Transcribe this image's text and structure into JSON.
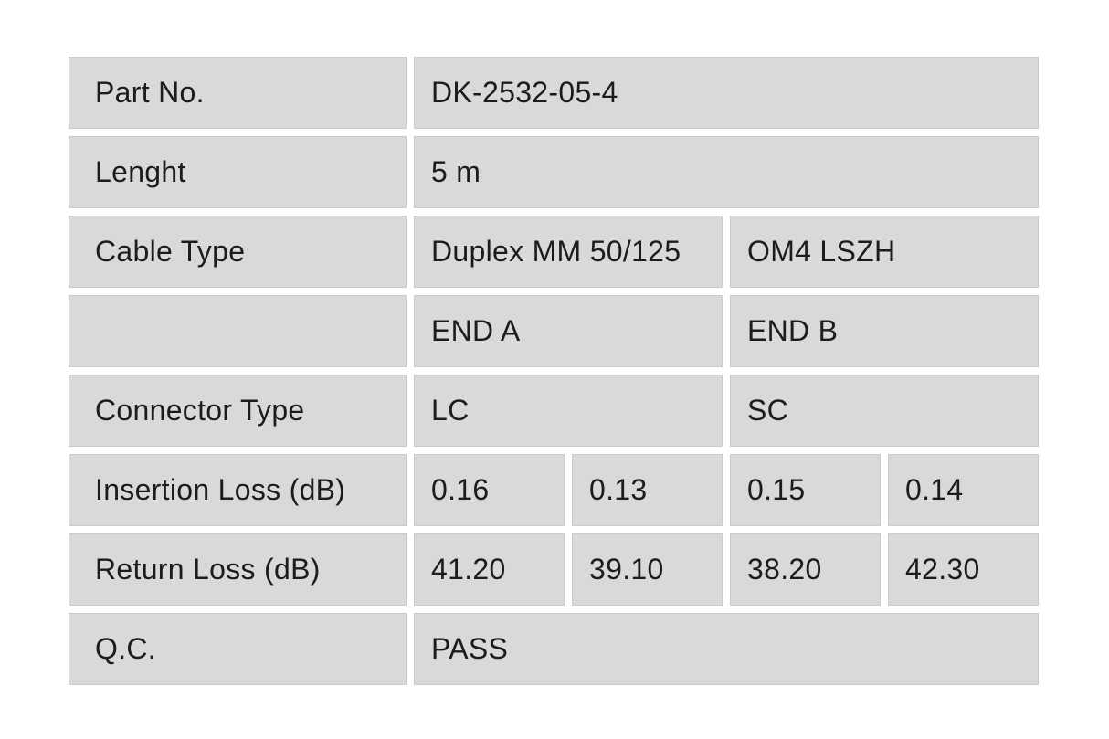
{
  "table": {
    "name": "fiber-patch-cable-qc-spec",
    "rows": [
      {
        "label": "Part No.",
        "values": [
          {
            "text": "DK-2532-05-4",
            "span": 4
          }
        ]
      },
      {
        "label": "Lenght",
        "values": [
          {
            "text": "5 m",
            "span": 4
          }
        ]
      },
      {
        "label": "Cable Type",
        "values": [
          {
            "text": "Duplex MM 50/125",
            "span": 2
          },
          {
            "text": "OM4 LSZH",
            "span": 2
          }
        ]
      },
      {
        "label": "",
        "values": [
          {
            "text": "END A",
            "span": 2
          },
          {
            "text": "END B",
            "span": 2
          }
        ]
      },
      {
        "label": "Connector Type",
        "values": [
          {
            "text": "LC",
            "span": 2
          },
          {
            "text": "SC",
            "span": 2
          }
        ]
      },
      {
        "label": "Insertion Loss (dB)",
        "values": [
          {
            "text": "0.16",
            "span": 1
          },
          {
            "text": "0.13",
            "span": 1
          },
          {
            "text": "0.15",
            "span": 1
          },
          {
            "text": "0.14",
            "span": 1
          }
        ]
      },
      {
        "label": "Return Loss (dB)",
        "values": [
          {
            "text": "41.20",
            "span": 1
          },
          {
            "text": "39.10",
            "span": 1
          },
          {
            "text": "38.20",
            "span": 1
          },
          {
            "text": "42.30",
            "span": 1
          }
        ]
      },
      {
        "label": "Q.C.",
        "values": [
          {
            "text": "PASS",
            "span": 4
          }
        ]
      }
    ],
    "colors": {
      "page_background": "#ffffff",
      "cell_background": "#d9d9d9",
      "cell_border": "#cbcbcb",
      "text": "#1c1c1c"
    }
  }
}
